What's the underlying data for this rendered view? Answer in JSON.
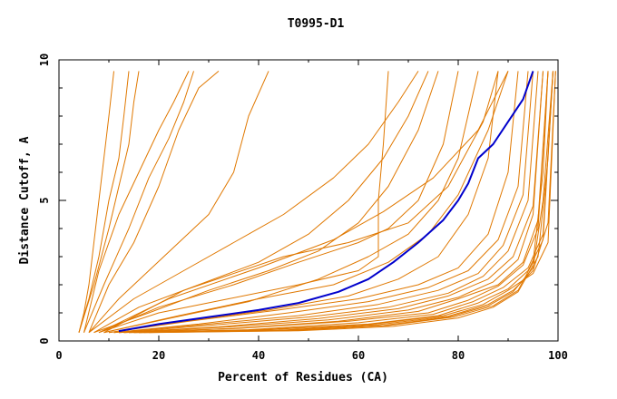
{
  "chart_data": {
    "type": "line",
    "title": "T0995-D1",
    "xlabel": "Percent of Residues (CA)",
    "ylabel": "Distance Cutoff, A",
    "xlim": [
      0,
      100
    ],
    "ylim": [
      0,
      10
    ],
    "x_ticks": [
      "0",
      "20",
      "40",
      "60",
      "80",
      "100"
    ],
    "y_ticks": [
      "0",
      "5",
      "10"
    ],
    "grid": false,
    "legend": "none",
    "colors": {
      "highlight": "#0000cc",
      "others": "#e07800",
      "axis": "#000000"
    },
    "highlight_series": {
      "points": [
        [
          12,
          0.35
        ],
        [
          20,
          0.6
        ],
        [
          30,
          0.85
        ],
        [
          40,
          1.1
        ],
        [
          48,
          1.35
        ],
        [
          56,
          1.75
        ],
        [
          62,
          2.2
        ],
        [
          67,
          2.8
        ],
        [
          72,
          3.5
        ],
        [
          77,
          4.3
        ],
        [
          80,
          5.0
        ],
        [
          82,
          5.6
        ],
        [
          84,
          6.5
        ],
        [
          87,
          7.0
        ],
        [
          90,
          7.8
        ],
        [
          93,
          8.6
        ],
        [
          95,
          9.6
        ]
      ]
    },
    "other_series": [
      {
        "points": [
          [
            4,
            0.3
          ],
          [
            5,
            1.0
          ],
          [
            6,
            2.0
          ],
          [
            7,
            3.5
          ],
          [
            8,
            5.0
          ],
          [
            9,
            6.5
          ],
          [
            10,
            8.0
          ],
          [
            11,
            9.6
          ]
        ]
      },
      {
        "points": [
          [
            4,
            0.3
          ],
          [
            6,
            1.5
          ],
          [
            8,
            3.0
          ],
          [
            10,
            5.0
          ],
          [
            12,
            6.5
          ],
          [
            13,
            8.0
          ],
          [
            14,
            9.6
          ]
        ]
      },
      {
        "points": [
          [
            4,
            0.3
          ],
          [
            7,
            2.0
          ],
          [
            10,
            4.0
          ],
          [
            12,
            5.5
          ],
          [
            14,
            7.0
          ],
          [
            15,
            8.5
          ],
          [
            16,
            9.6
          ]
        ]
      },
      {
        "points": [
          [
            5,
            0.3
          ],
          [
            8,
            2.5
          ],
          [
            12,
            4.5
          ],
          [
            16,
            6.0
          ],
          [
            20,
            7.5
          ],
          [
            23,
            8.5
          ],
          [
            26,
            9.6
          ]
        ]
      },
      {
        "points": [
          [
            5,
            0.3
          ],
          [
            9,
            2.0
          ],
          [
            14,
            4.0
          ],
          [
            18,
            5.8
          ],
          [
            22,
            7.2
          ],
          [
            25,
            8.5
          ],
          [
            27,
            9.6
          ]
        ]
      },
      {
        "points": [
          [
            6,
            0.3
          ],
          [
            10,
            2.0
          ],
          [
            15,
            3.5
          ],
          [
            20,
            5.5
          ],
          [
            24,
            7.5
          ],
          [
            28,
            9.0
          ],
          [
            32,
            9.6
          ]
        ]
      },
      {
        "points": [
          [
            6,
            0.3
          ],
          [
            12,
            1.5
          ],
          [
            18,
            2.5
          ],
          [
            24,
            3.5
          ],
          [
            30,
            4.5
          ],
          [
            35,
            6.0
          ],
          [
            38,
            8.0
          ],
          [
            42,
            9.6
          ]
        ]
      },
      {
        "points": [
          [
            6,
            0.3
          ],
          [
            15,
            1.5
          ],
          [
            25,
            2.5
          ],
          [
            35,
            3.5
          ],
          [
            45,
            4.5
          ],
          [
            55,
            5.8
          ],
          [
            62,
            7.0
          ],
          [
            68,
            8.5
          ],
          [
            72,
            9.6
          ]
        ]
      },
      {
        "points": [
          [
            7,
            0.3
          ],
          [
            16,
            1.2
          ],
          [
            28,
            2.0
          ],
          [
            40,
            2.8
          ],
          [
            50,
            3.8
          ],
          [
            58,
            5.0
          ],
          [
            65,
            6.5
          ],
          [
            70,
            8.0
          ],
          [
            74,
            9.6
          ]
        ]
      },
      {
        "points": [
          [
            7,
            0.3
          ],
          [
            18,
            1.0
          ],
          [
            30,
            1.8
          ],
          [
            42,
            2.5
          ],
          [
            52,
            3.2
          ],
          [
            60,
            4.2
          ],
          [
            66,
            5.5
          ],
          [
            72,
            7.5
          ],
          [
            76,
            9.6
          ]
        ]
      },
      {
        "points": [
          [
            8,
            0.3
          ],
          [
            20,
            1.2
          ],
          [
            35,
            2.0
          ],
          [
            48,
            2.8
          ],
          [
            60,
            3.5
          ],
          [
            66,
            4.0
          ],
          [
            72,
            5.0
          ],
          [
            77,
            7.0
          ],
          [
            80,
            9.6
          ]
        ]
      },
      {
        "points": [
          [
            8,
            0.3
          ],
          [
            20,
            1.0
          ],
          [
            34,
            1.5
          ],
          [
            48,
            2.0
          ],
          [
            60,
            2.5
          ],
          [
            64,
            3.0
          ],
          [
            64,
            5.0
          ],
          [
            65,
            7.0
          ],
          [
            66,
            9.6
          ]
        ]
      },
      {
        "points": [
          [
            9,
            0.3
          ],
          [
            22,
            0.8
          ],
          [
            38,
            1.4
          ],
          [
            52,
            2.2
          ],
          [
            62,
            3.0
          ],
          [
            70,
            3.8
          ],
          [
            76,
            5.0
          ],
          [
            80,
            6.5
          ],
          [
            84,
            9.6
          ]
        ]
      },
      {
        "points": [
          [
            9,
            0.3
          ],
          [
            24,
            0.9
          ],
          [
            40,
            1.5
          ],
          [
            55,
            2.0
          ],
          [
            66,
            2.8
          ],
          [
            74,
            3.8
          ],
          [
            80,
            5.2
          ],
          [
            86,
            7.5
          ],
          [
            90,
            9.6
          ]
        ]
      },
      {
        "points": [
          [
            10,
            0.3
          ],
          [
            25,
            0.7
          ],
          [
            42,
            1.1
          ],
          [
            58,
            1.6
          ],
          [
            68,
            2.2
          ],
          [
            76,
            3.0
          ],
          [
            82,
            4.5
          ],
          [
            86,
            6.5
          ],
          [
            88,
            9.6
          ]
        ]
      },
      {
        "points": [
          [
            10,
            0.3
          ],
          [
            26,
            0.7
          ],
          [
            44,
            1.1
          ],
          [
            60,
            1.5
          ],
          [
            72,
            2.0
          ],
          [
            80,
            2.6
          ],
          [
            86,
            3.8
          ],
          [
            90,
            6.0
          ],
          [
            92,
            9.6
          ]
        ]
      },
      {
        "points": [
          [
            11,
            0.3
          ],
          [
            28,
            0.6
          ],
          [
            46,
            1.0
          ],
          [
            62,
            1.4
          ],
          [
            74,
            1.9
          ],
          [
            82,
            2.5
          ],
          [
            88,
            3.6
          ],
          [
            92,
            5.5
          ],
          [
            94,
            9.6
          ]
        ]
      },
      {
        "points": [
          [
            11,
            0.3
          ],
          [
            30,
            0.6
          ],
          [
            48,
            0.9
          ],
          [
            64,
            1.3
          ],
          [
            76,
            1.8
          ],
          [
            84,
            2.4
          ],
          [
            89,
            3.4
          ],
          [
            93,
            5.2
          ],
          [
            95,
            9.6
          ]
        ]
      },
      {
        "points": [
          [
            12,
            0.3
          ],
          [
            30,
            0.55
          ],
          [
            50,
            0.85
          ],
          [
            66,
            1.2
          ],
          [
            78,
            1.7
          ],
          [
            85,
            2.3
          ],
          [
            90,
            3.2
          ],
          [
            94,
            5.0
          ],
          [
            96,
            9.6
          ]
        ]
      },
      {
        "points": [
          [
            12,
            0.3
          ],
          [
            32,
            0.5
          ],
          [
            52,
            0.8
          ],
          [
            68,
            1.15
          ],
          [
            78,
            1.6
          ],
          [
            86,
            2.2
          ],
          [
            91,
            3.0
          ],
          [
            95,
            4.8
          ],
          [
            97,
            9.6
          ]
        ]
      },
      {
        "points": [
          [
            13,
            0.3
          ],
          [
            34,
            0.5
          ],
          [
            54,
            0.75
          ],
          [
            70,
            1.1
          ],
          [
            80,
            1.55
          ],
          [
            87,
            2.1
          ],
          [
            92,
            2.9
          ],
          [
            95,
            4.5
          ],
          [
            97,
            9.6
          ]
        ]
      },
      {
        "points": [
          [
            13,
            0.3
          ],
          [
            35,
            0.45
          ],
          [
            56,
            0.7
          ],
          [
            72,
            1.05
          ],
          [
            80,
            1.5
          ],
          [
            88,
            2.0
          ],
          [
            93,
            2.8
          ],
          [
            96,
            4.3
          ],
          [
            98,
            9.6
          ]
        ]
      },
      {
        "points": [
          [
            14,
            0.3
          ],
          [
            36,
            0.45
          ],
          [
            58,
            0.7
          ],
          [
            74,
            1.0
          ],
          [
            82,
            1.45
          ],
          [
            88,
            1.95
          ],
          [
            93,
            2.7
          ],
          [
            96,
            4.0
          ],
          [
            98,
            9.6
          ]
        ]
      },
      {
        "points": [
          [
            14,
            0.3
          ],
          [
            38,
            0.4
          ],
          [
            60,
            0.65
          ],
          [
            75,
            0.95
          ],
          [
            83,
            1.4
          ],
          [
            89,
            1.9
          ],
          [
            94,
            2.6
          ],
          [
            97,
            3.8
          ],
          [
            99,
            9.6
          ]
        ]
      },
      {
        "points": [
          [
            15,
            0.3
          ],
          [
            40,
            0.4
          ],
          [
            62,
            0.6
          ],
          [
            76,
            0.9
          ],
          [
            84,
            1.35
          ],
          [
            90,
            1.85
          ],
          [
            94,
            2.5
          ],
          [
            97,
            3.6
          ],
          [
            99,
            9.6
          ]
        ]
      },
      {
        "points": [
          [
            15,
            0.3
          ],
          [
            42,
            0.4
          ],
          [
            63,
            0.6
          ],
          [
            77,
            0.9
          ],
          [
            85,
            1.3
          ],
          [
            90,
            1.8
          ],
          [
            95,
            2.4
          ],
          [
            98,
            3.5
          ],
          [
            99.5,
            9.6
          ]
        ]
      },
      {
        "points": [
          [
            16,
            0.3
          ],
          [
            44,
            0.38
          ],
          [
            64,
            0.58
          ],
          [
            78,
            0.88
          ],
          [
            86,
            1.3
          ],
          [
            91,
            1.8
          ],
          [
            95,
            2.5
          ],
          [
            98,
            4.2
          ],
          [
            99.5,
            9.6
          ]
        ]
      },
      {
        "points": [
          [
            16,
            0.3
          ],
          [
            45,
            0.38
          ],
          [
            65,
            0.55
          ],
          [
            78,
            0.85
          ],
          [
            86,
            1.25
          ],
          [
            91,
            1.75
          ],
          [
            95,
            2.6
          ],
          [
            97,
            5.0
          ],
          [
            99,
            9.6
          ]
        ]
      },
      {
        "points": [
          [
            17,
            0.3
          ],
          [
            46,
            0.36
          ],
          [
            66,
            0.55
          ],
          [
            79,
            0.85
          ],
          [
            87,
            1.25
          ],
          [
            92,
            1.8
          ],
          [
            95,
            2.8
          ],
          [
            97,
            6.0
          ],
          [
            98,
            9.6
          ]
        ]
      },
      {
        "points": [
          [
            18,
            0.3
          ],
          [
            48,
            0.36
          ],
          [
            67,
            0.52
          ],
          [
            80,
            0.82
          ],
          [
            87,
            1.2
          ],
          [
            92,
            1.75
          ],
          [
            96,
            3.0
          ],
          [
            98,
            6.5
          ],
          [
            99,
            9.6
          ]
        ]
      },
      {
        "points": [
          [
            8,
            0.3
          ],
          [
            22,
            1.5
          ],
          [
            40,
            2.6
          ],
          [
            55,
            3.6
          ],
          [
            65,
            4.6
          ],
          [
            75,
            5.8
          ],
          [
            84,
            7.5
          ],
          [
            90,
            9.6
          ]
        ]
      },
      {
        "points": [
          [
            9,
            0.3
          ],
          [
            25,
            1.8
          ],
          [
            45,
            3.0
          ],
          [
            58,
            3.5
          ],
          [
            70,
            4.2
          ],
          [
            78,
            5.5
          ],
          [
            85,
            7.8
          ],
          [
            88,
            9.6
          ]
        ]
      }
    ]
  }
}
